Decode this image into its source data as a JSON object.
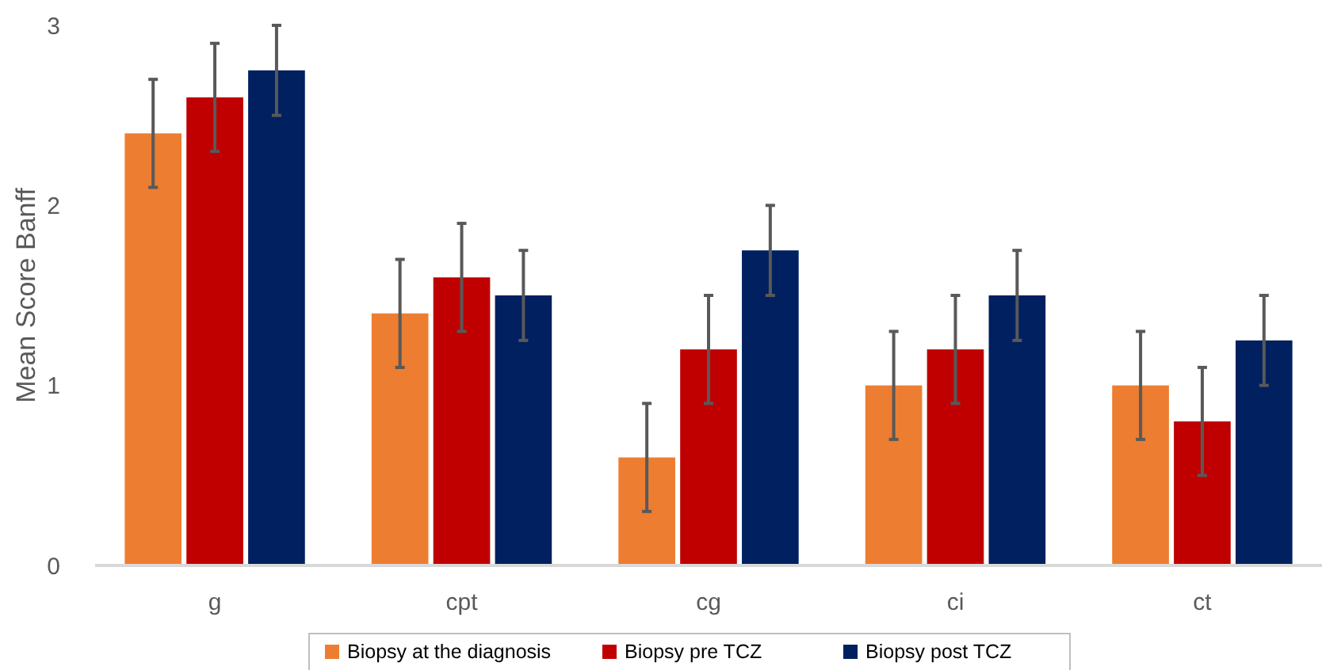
{
  "chart_data": {
    "type": "bar",
    "ylabel": "Mean Score Banff",
    "categories": [
      "g",
      "cpt",
      "cg",
      "ci",
      "ct"
    ],
    "series": [
      {
        "name": "Biopsy at the diagnosis",
        "color": "#ed7d31",
        "values": [
          2.4,
          1.4,
          0.6,
          1.0,
          1.0
        ],
        "errors": [
          0.3,
          0.3,
          0.3,
          0.3,
          0.3
        ]
      },
      {
        "name": "Biopsy pre TCZ",
        "color": "#c00000",
        "values": [
          2.6,
          1.6,
          1.2,
          1.2,
          0.8
        ],
        "errors": [
          0.3,
          0.3,
          0.3,
          0.3,
          0.3
        ]
      },
      {
        "name": "Biopsy post TCZ",
        "color": "#002060",
        "values": [
          2.75,
          1.5,
          1.75,
          1.5,
          1.25
        ],
        "errors": [
          0.25,
          0.25,
          0.25,
          0.25,
          0.25
        ]
      }
    ],
    "ylim": [
      0,
      3
    ],
    "yticks": [
      0,
      1,
      2,
      3
    ],
    "grid": false,
    "legend": "bottom"
  }
}
